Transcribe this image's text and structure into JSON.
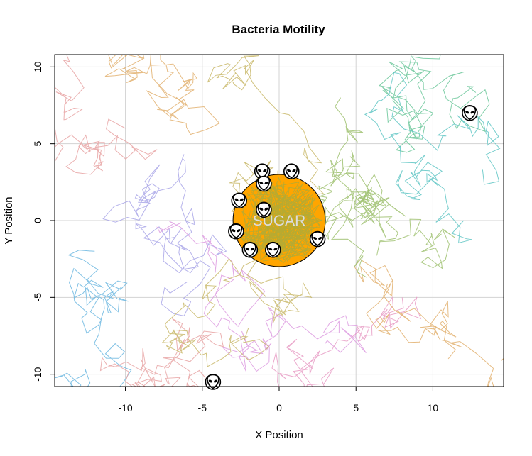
{
  "chart_data": {
    "type": "scatter",
    "title": "Bacteria Motility",
    "xlabel": "X Position",
    "ylabel": "Y Position",
    "xlim": [
      -14.6,
      14.6
    ],
    "ylim": [
      -10.8,
      10.8
    ],
    "x_ticks": [
      -10,
      -5,
      0,
      5,
      10
    ],
    "y_ticks": [
      -10,
      -5,
      0,
      5,
      10
    ],
    "grid": true,
    "food": {
      "label": "SUGAR",
      "center": [
        0,
        0
      ],
      "radius": 3,
      "fill_color": "#FFA500",
      "label_color": "#dddddd"
    },
    "trail_colors": [
      "#E7A3A3",
      "#E2B06E",
      "#C9B86A",
      "#9FC170",
      "#6BC79A",
      "#5FC6C4",
      "#6CB7E0",
      "#A9A6E8",
      "#DD9BE0",
      "#E89BC4"
    ],
    "bacteria_icon": "alien-face-icon",
    "bacteria": [
      {
        "x": -1.1,
        "y": 3.2
      },
      {
        "x": 0.8,
        "y": 3.2
      },
      {
        "x": -1.0,
        "y": 2.4
      },
      {
        "x": -2.6,
        "y": 1.3
      },
      {
        "x": -1.0,
        "y": 0.7
      },
      {
        "x": -2.8,
        "y": -0.7
      },
      {
        "x": -1.9,
        "y": -1.9
      },
      {
        "x": -0.4,
        "y": -1.9
      },
      {
        "x": 2.5,
        "y": -1.2
      },
      {
        "x": 12.4,
        "y": 7.0
      },
      {
        "x": -4.3,
        "y": -10.5
      }
    ]
  }
}
